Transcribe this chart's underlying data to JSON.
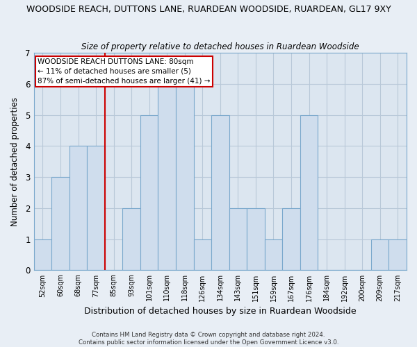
{
  "title": "WOODSIDE REACH, DUTTONS LANE, RUARDEAN WOODSIDE, RUARDEAN, GL17 9XY",
  "subtitle": "Size of property relative to detached houses in Ruardean Woodside",
  "xlabel": "Distribution of detached houses by size in Ruardean Woodside",
  "ylabel": "Number of detached properties",
  "bin_labels": [
    "52sqm",
    "60sqm",
    "68sqm",
    "77sqm",
    "85sqm",
    "93sqm",
    "101sqm",
    "110sqm",
    "118sqm",
    "126sqm",
    "134sqm",
    "143sqm",
    "151sqm",
    "159sqm",
    "167sqm",
    "176sqm",
    "184sqm",
    "192sqm",
    "200sqm",
    "209sqm",
    "217sqm"
  ],
  "bar_values": [
    1,
    3,
    4,
    4,
    0,
    2,
    5,
    6,
    6,
    1,
    5,
    2,
    2,
    1,
    2,
    5,
    0,
    0,
    0,
    1,
    1
  ],
  "bar_color": "#cfdded",
  "bar_edge_color": "#7aa8cc",
  "reference_line_x_label": "77sqm",
  "reference_line_color": "#cc0000",
  "ylim": [
    0,
    7
  ],
  "yticks": [
    0,
    1,
    2,
    3,
    4,
    5,
    6,
    7
  ],
  "annotation_title": "WOODSIDE REACH DUTTONS LANE: 80sqm",
  "annotation_line1": "← 11% of detached houses are smaller (5)",
  "annotation_line2": "87% of semi-detached houses are larger (41) →",
  "footer_line1": "Contains HM Land Registry data © Crown copyright and database right 2024.",
  "footer_line2": "Contains public sector information licensed under the Open Government Licence v3.0.",
  "bg_color": "#e8eef5",
  "plot_bg_color": "#dce6f0",
  "grid_color": "#b8c8d8",
  "spine_color": "#7aa8cc"
}
